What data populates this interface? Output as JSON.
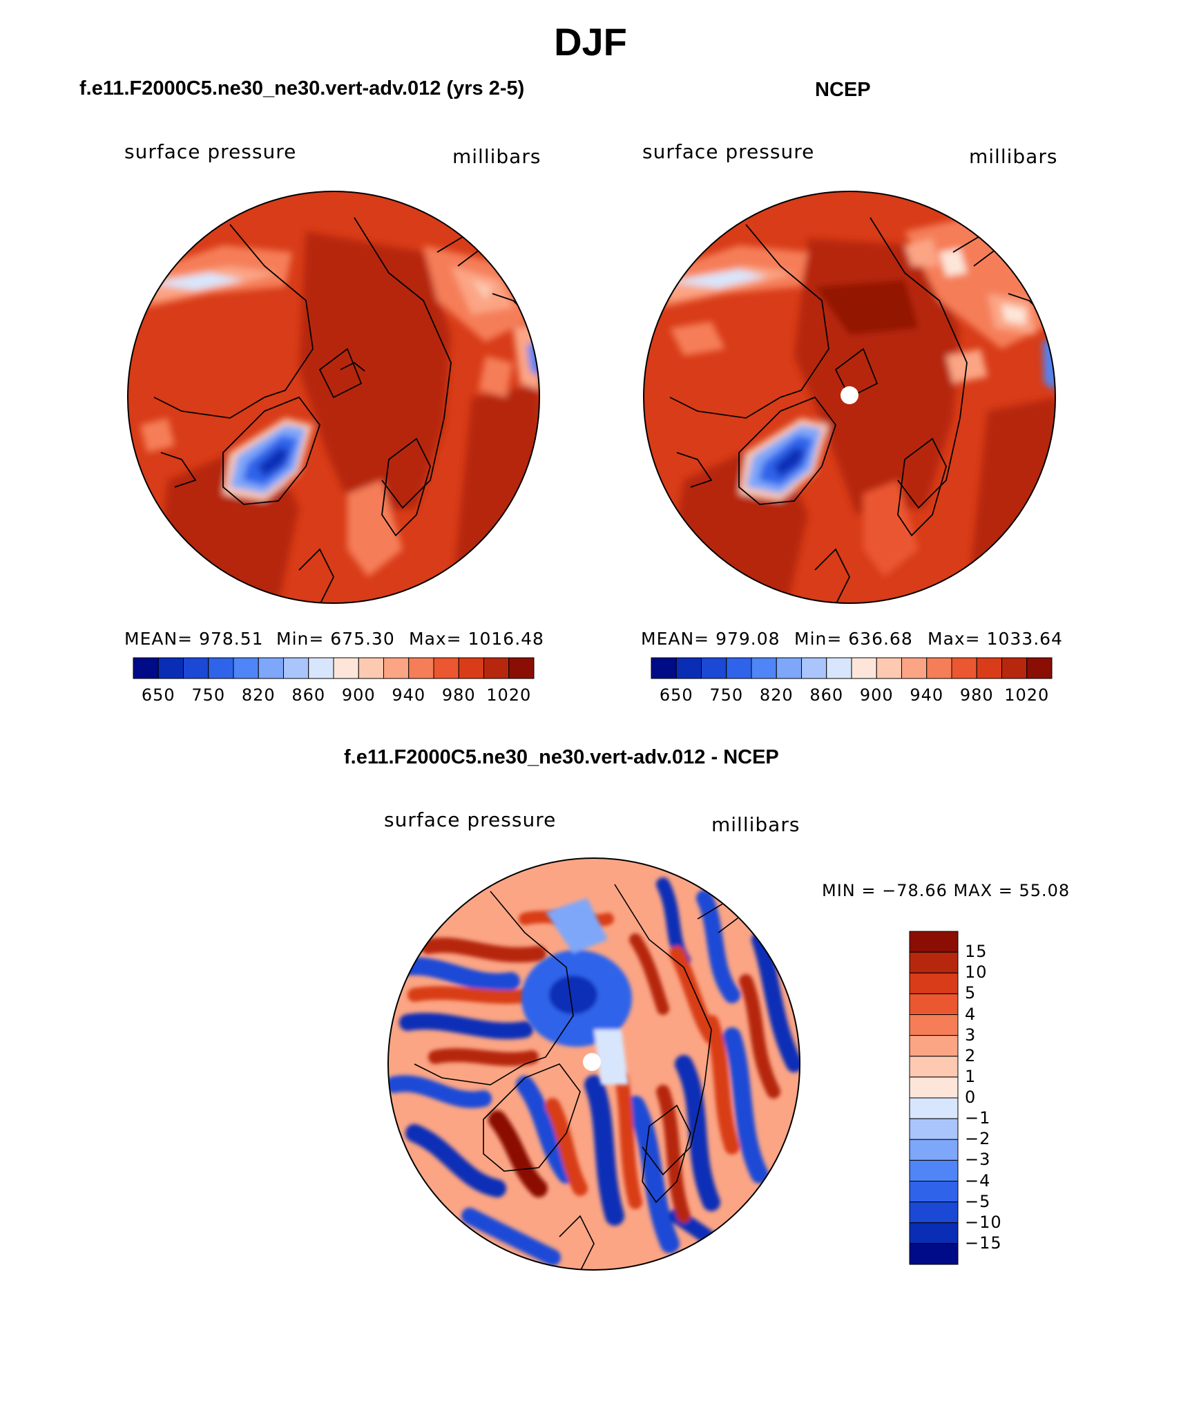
{
  "figure": {
    "season": "DJF",
    "panels": [
      {
        "id": "model",
        "title": "f.e11.F2000C5.ne30_ne30.vert-adv.012 (yrs 2-5)",
        "variable": "surface pressure",
        "units": "millibars",
        "stats": {
          "mean_text": "MEAN= 978.51",
          "min_text": "Min= 675.30",
          "max_text": "Max= 1016.48"
        }
      },
      {
        "id": "obs",
        "title": "NCEP",
        "variable": "surface pressure",
        "units": "millibars",
        "stats": {
          "mean_text": "MEAN= 979.08",
          "min_text": "Min= 636.68",
          "max_text": "Max= 1033.64"
        }
      },
      {
        "id": "diff",
        "title": "f.e11.F2000C5.ne30_ne30.vert-adv.012 - NCEP",
        "variable": "surface pressure",
        "units": "millibars",
        "stats_text": "MIN = −78.66 MAX =  55.08"
      }
    ],
    "abs_colorbar": {
      "colors": [
        "#000b88",
        "#0a2db6",
        "#1b49d6",
        "#2f63ea",
        "#4f85f6",
        "#7ea7fa",
        "#a9c5fb",
        "#d8e6fd",
        "#fde6d9",
        "#fdc9b1",
        "#fba585",
        "#f57e58",
        "#eb5730",
        "#d83c18",
        "#b6270d",
        "#8b0e05"
      ],
      "labels": [
        "650",
        "750",
        "820",
        "860",
        "900",
        "940",
        "980",
        "1020"
      ]
    },
    "diff_colorbar": {
      "colors": [
        "#8b0e05",
        "#b6270d",
        "#d83c18",
        "#eb5730",
        "#f57e58",
        "#fba585",
        "#fdc9b1",
        "#fde6d9",
        "#d8e6fd",
        "#a9c5fb",
        "#7ea7fa",
        "#4f85f6",
        "#2f63ea",
        "#1b49d6",
        "#0a2db6",
        "#000b88"
      ],
      "labels": [
        "15",
        "10",
        "5",
        "4",
        "3",
        "2",
        "1",
        "0",
        "−1",
        "−2",
        "−3",
        "−4",
        "−5",
        "−10",
        "−15"
      ]
    }
  }
}
